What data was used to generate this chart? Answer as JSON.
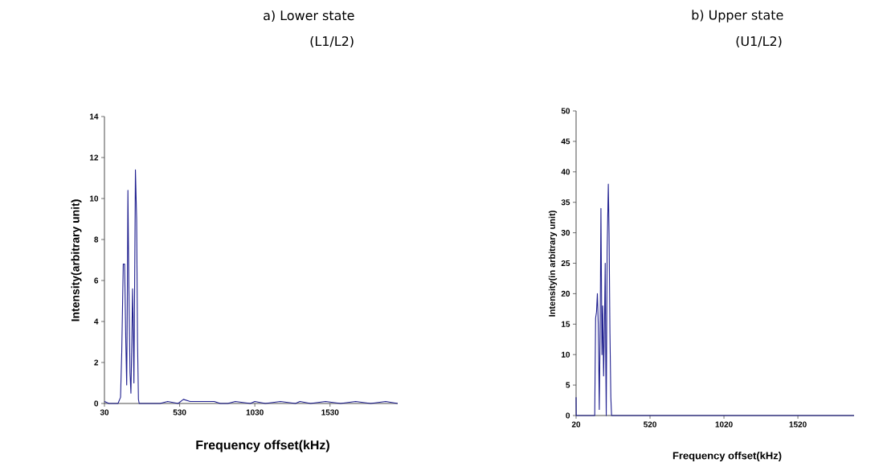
{
  "chart_data": [
    {
      "type": "line",
      "title": "a)  Lower state",
      "subtitle": "(L1/L2)",
      "xlabel": "Frequency offset(kHz)",
      "ylabel": "Intensity(arbitrary unit)",
      "xlim": [
        30,
        1980
      ],
      "ylim": [
        0,
        14
      ],
      "xticks": [
        30,
        530,
        1030,
        1530
      ],
      "yticks": [
        0,
        2,
        4,
        6,
        8,
        10,
        12,
        14
      ],
      "series": [
        {
          "color": "#1f1f8f",
          "x": [
            30,
            60,
            90,
            120,
            137,
            145,
            155,
            164,
            172,
            178,
            182,
            186,
            192,
            200,
            206,
            212,
            217,
            222,
            226,
            231,
            236,
            244,
            250,
            256,
            261,
            300,
            400,
            450,
            520,
            555,
            600,
            700,
            760,
            800,
            850,
            900,
            1000,
            1030,
            1100,
            1200,
            1300,
            1330,
            1400,
            1500,
            1600,
            1700,
            1800,
            1900,
            1980
          ],
          "values": [
            0.1,
            0,
            0,
            0,
            0.3,
            2.5,
            6.8,
            6.8,
            3,
            0.9,
            5,
            10.4,
            6,
            1.5,
            0.5,
            3,
            5.6,
            3.5,
            1.0,
            6,
            11.4,
            9,
            3,
            0.2,
            0,
            0,
            0,
            0.1,
            0,
            0.2,
            0.1,
            0.1,
            0.1,
            0,
            0,
            0.1,
            0,
            0.1,
            0,
            0.1,
            0,
            0.1,
            0,
            0.1,
            0,
            0.1,
            0,
            0.1,
            0
          ]
        }
      ]
    },
    {
      "type": "line",
      "title": "b) Upper state",
      "subtitle": "(U1/L2)",
      "xlabel": "Frequency offset(kHz)",
      "ylabel": "Intensity(in arbitrary unit)",
      "xlim": [
        20,
        1900
      ],
      "ylim": [
        0,
        50
      ],
      "xticks": [
        20,
        520,
        1020,
        1520
      ],
      "yticks": [
        0,
        5,
        10,
        15,
        20,
        25,
        30,
        35,
        40,
        45,
        50
      ],
      "series": [
        {
          "color": "#1f1f8f",
          "x": [
            20,
            21,
            30,
            80,
            130,
            146,
            152,
            158,
            164,
            170,
            177,
            183,
            188,
            195,
            200,
            206,
            212,
            217,
            221,
            224,
            230,
            238,
            243,
            249,
            255,
            260,
            300,
            400,
            500,
            600,
            700,
            800,
            900,
            1000,
            1100,
            1200,
            1300,
            1400,
            1500,
            1600,
            1700,
            1800,
            1900
          ],
          "values": [
            3,
            0,
            0,
            0,
            0,
            0,
            16,
            17,
            20,
            15,
            1,
            15,
            34,
            10,
            18,
            6.5,
            15,
            25,
            8,
            0,
            27,
            38,
            30,
            13.5,
            3,
            0,
            0,
            0,
            0,
            0,
            0,
            0,
            0,
            0,
            0,
            0,
            0,
            0,
            0,
            0,
            0,
            0,
            0
          ]
        }
      ]
    }
  ]
}
